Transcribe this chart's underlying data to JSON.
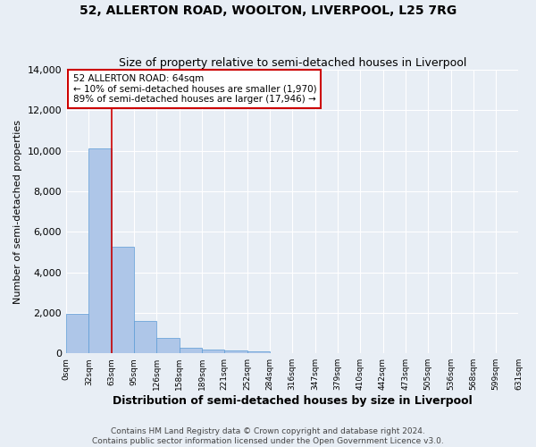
{
  "title": "52, ALLERTON ROAD, WOOLTON, LIVERPOOL, L25 7RG",
  "subtitle": "Size of property relative to semi-detached houses in Liverpool",
  "xlabel": "Distribution of semi-detached houses by size in Liverpool",
  "ylabel": "Number of semi-detached properties",
  "annotation_title": "52 ALLERTON ROAD: 64sqm",
  "annotation_line2": "← 10% of semi-detached houses are smaller (1,970)",
  "annotation_line3": "89% of semi-detached houses are larger (17,946) →",
  "footer_line1": "Contains HM Land Registry data © Crown copyright and database right 2024.",
  "footer_line2": "Contains public sector information licensed under the Open Government Licence v3.0.",
  "bin_labels": [
    "0sqm",
    "32sqm",
    "63sqm",
    "95sqm",
    "126sqm",
    "158sqm",
    "189sqm",
    "221sqm",
    "252sqm",
    "284sqm",
    "316sqm",
    "347sqm",
    "379sqm",
    "410sqm",
    "442sqm",
    "473sqm",
    "505sqm",
    "536sqm",
    "568sqm",
    "599sqm",
    "631sqm"
  ],
  "bar_values": [
    1950,
    10100,
    5250,
    1580,
    760,
    280,
    175,
    130,
    100,
    0,
    0,
    0,
    0,
    0,
    0,
    0,
    0,
    0,
    0,
    0
  ],
  "bar_color": "#aec6e8",
  "bar_edge_color": "#5b9bd5",
  "property_line_x": 2,
  "property_line_color": "#cc0000",
  "annotation_box_color": "#ffffff",
  "annotation_box_edge": "#cc0000",
  "ylim": [
    0,
    14000
  ],
  "yticks": [
    0,
    2000,
    4000,
    6000,
    8000,
    10000,
    12000,
    14000
  ],
  "background_color": "#e8eef5",
  "plot_bg_color": "#e8eef5",
  "grid_color": "#ffffff",
  "title_fontsize": 10,
  "subtitle_fontsize": 9,
  "annotation_fontsize": 7.5,
  "ylabel_fontsize": 8,
  "xlabel_fontsize": 9,
  "footer_fontsize": 6.5
}
